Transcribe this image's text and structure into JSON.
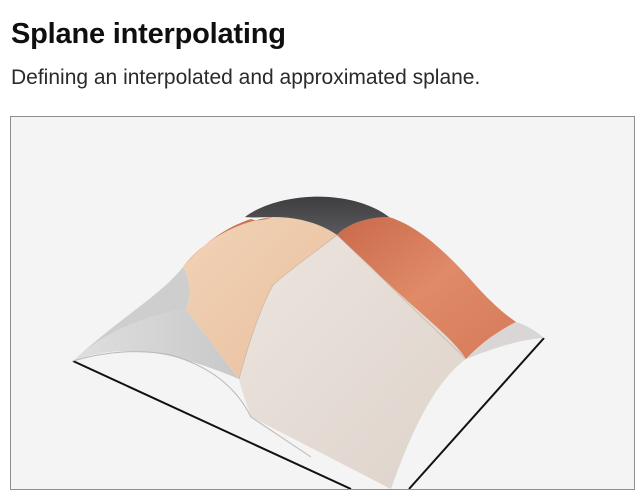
{
  "header": {
    "title": "Splane interpolating",
    "subtitle": "Defining an interpolated and approximated splane."
  },
  "viewer": {
    "background_color": "#f4f4f4",
    "surface_colors": {
      "top_cap": "#4b4b4e",
      "orange_patch": "#d97c5a",
      "peach_patch": "#f0c9a9",
      "light_patch": "#e4dbd4",
      "grey_patch": "#d4d3d3",
      "outline": "#111111"
    }
  }
}
